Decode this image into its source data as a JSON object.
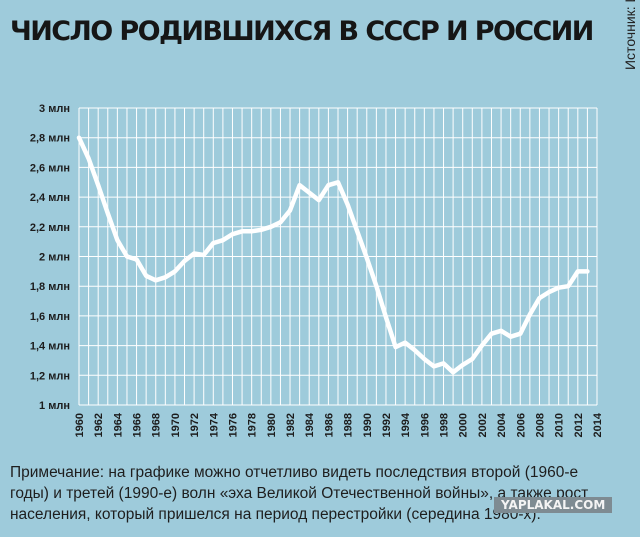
{
  "title": "ЧИСЛО РОДИВШИХСЯ В СССР И РОССИИ",
  "source": "Источник: Институт демографии НИУ ВШЭ",
  "note": "Примечание: на графике можно отчетливо видеть последствия второй (1960-е годы) и третей (1990-е) волн «эха Великой Отечественной войны», а также рост населения, который пришелся на период перестройки (середина 1980-х).",
  "watermark": "YAPLAKAL.COM",
  "colors": {
    "background": "#9ecbdb",
    "line": "#ffffff",
    "grid": "#ffffff"
  },
  "chart_data": {
    "type": "line",
    "title": "ЧИСЛО РОДИВШИХСЯ В СССР И РОССИИ",
    "xlabel": "",
    "ylabel": "",
    "xlim": [
      1960,
      2014
    ],
    "ylim": [
      1,
      3
    ],
    "grid": true,
    "legend": "none",
    "x_ticks": [
      "1960",
      "1962",
      "1964",
      "1966",
      "1968",
      "1970",
      "1972",
      "1974",
      "1976",
      "1978",
      "1980",
      "1982",
      "1984",
      "1986",
      "1988",
      "1990",
      "1992",
      "1994",
      "1996",
      "1998",
      "2000",
      "2002",
      "2004",
      "2006",
      "2008",
      "2010",
      "2012",
      "2014"
    ],
    "y_ticks": [
      "1 млн",
      "1,2 млн",
      "1,4 млн",
      "1,6 млн",
      "1,8 млн",
      "2 млн",
      "2,2 млн",
      "2,4 млн",
      "2,6 млн",
      "2,8 млн",
      "3 млн"
    ],
    "series": [
      {
        "x": [
          1960,
          1961,
          1962,
          1963,
          1964,
          1965,
          1966,
          1967,
          1968,
          1969,
          1970,
          1971,
          1972,
          1973,
          1974,
          1975,
          1976,
          1977,
          1978,
          1979,
          1980,
          1981,
          1982,
          1983,
          1984,
          1985,
          1986,
          1987,
          1988,
          1989,
          1990,
          1991,
          1992,
          1993,
          1994,
          1995,
          1996,
          1997,
          1998,
          1999,
          2000,
          2001,
          2002,
          2003,
          2004,
          2005,
          2006,
          2007,
          2008,
          2009,
          2010,
          2011,
          2012,
          2013
        ],
        "values": [
          2.8,
          2.66,
          2.48,
          2.29,
          2.11,
          2.0,
          1.98,
          1.87,
          1.84,
          1.86,
          1.9,
          1.97,
          2.02,
          2.01,
          2.09,
          2.11,
          2.15,
          2.17,
          2.17,
          2.18,
          2.2,
          2.23,
          2.31,
          2.48,
          2.43,
          2.38,
          2.48,
          2.5,
          2.35,
          2.17,
          1.99,
          1.8,
          1.59,
          1.39,
          1.42,
          1.37,
          1.31,
          1.26,
          1.28,
          1.22,
          1.27,
          1.31,
          1.4,
          1.48,
          1.5,
          1.46,
          1.48,
          1.61,
          1.72,
          1.76,
          1.79,
          1.8,
          1.9,
          1.9
        ]
      }
    ]
  }
}
